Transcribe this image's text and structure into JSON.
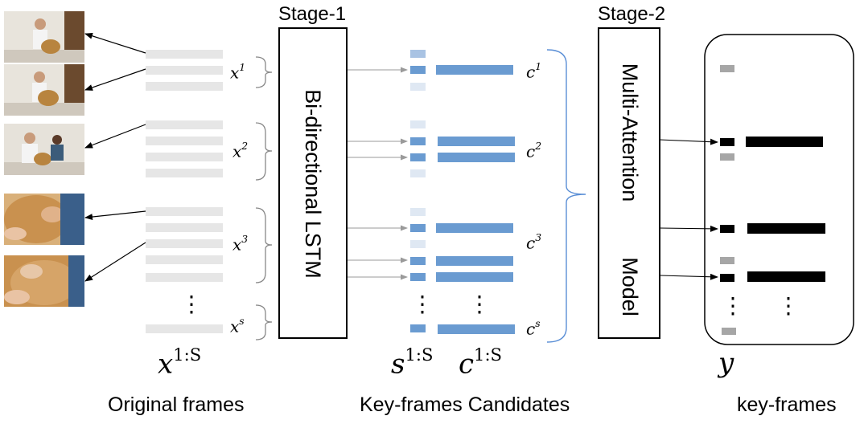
{
  "stage1": {
    "label": "Stage-1",
    "box_text": "Bi-directional LSTM"
  },
  "stage2": {
    "label": "Stage-2",
    "box_text_line1": "Multi-Attention",
    "box_text_line2": "Model"
  },
  "input_groups": [
    {
      "symbol": "x",
      "index": "1"
    },
    {
      "symbol": "x",
      "index": "2"
    },
    {
      "symbol": "x",
      "index": "3"
    },
    {
      "symbol": "x",
      "index": "s"
    }
  ],
  "candidate_groups": [
    {
      "symbol": "c",
      "index": "1"
    },
    {
      "symbol": "c",
      "index": "2"
    },
    {
      "symbol": "c",
      "index": "3"
    },
    {
      "symbol": "c",
      "index": "s"
    }
  ],
  "sequence_labels": {
    "x_seq": {
      "symbol": "x",
      "range": "1:S"
    },
    "s_seq": {
      "symbol": "s",
      "range": "1:S"
    },
    "c_seq": {
      "symbol": "c",
      "range": "1:S"
    },
    "y": "y"
  },
  "bottom_labels": {
    "original": "Original frames",
    "candidates": "Key-frames Candidates",
    "keyframes": "key-frames"
  },
  "ellipsis": "⋮",
  "colors": {
    "frame_bar": "#e6e6e6",
    "candidate_blue": "#6a9bd1",
    "candidate_light": "#dfe8f3",
    "candidate_mid": "#a9c3e3",
    "keyframe_black": "#000000",
    "keyframe_gray": "#a6a6a6",
    "brace_blue": "#5b8fd6",
    "arrow_gray": "#9a9a9a"
  }
}
